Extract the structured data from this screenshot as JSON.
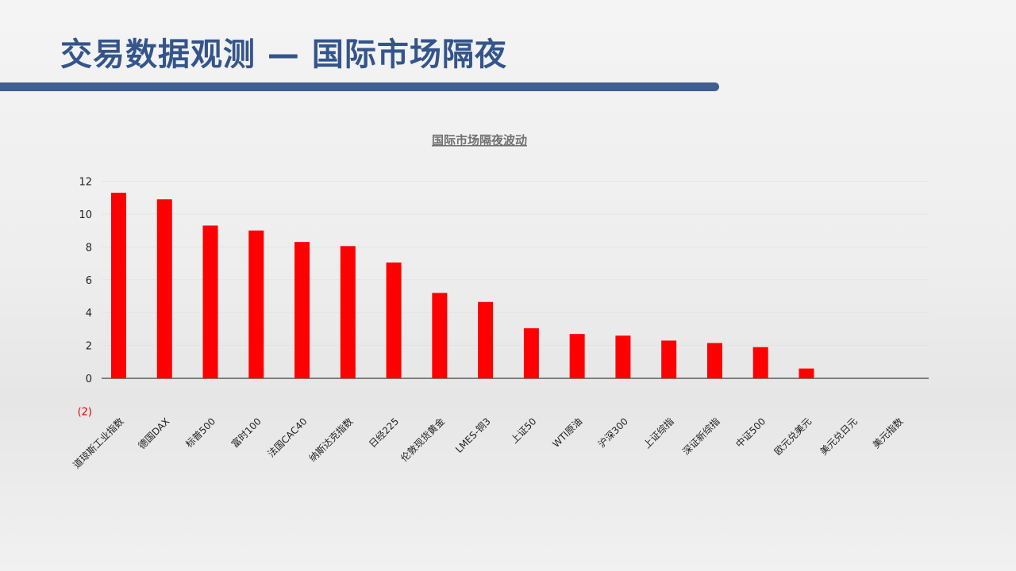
{
  "page": {
    "title": "交易数据观测 — 国际市场隔夜"
  },
  "colors": {
    "title_text": "#34558b",
    "title_bar": "#3f5e91",
    "bar": "#ff0000",
    "negative_tick": "#e00000"
  },
  "chart_data": {
    "type": "bar",
    "title": "国际市场隔夜波动",
    "xlabel": "",
    "ylabel": "",
    "ylim": [
      -2,
      12
    ],
    "yticks": [
      12,
      10,
      8,
      6,
      4,
      2,
      0,
      -2
    ],
    "ytick_labels": [
      "12",
      "10",
      "8",
      "6",
      "4",
      "2",
      "0",
      "(2)"
    ],
    "grid": true,
    "legend": "none",
    "categories": [
      "道琼斯工业指数",
      "德国DAX",
      "标普500",
      "富时100",
      "法国CAC40",
      "纳斯达克指数",
      "日经225",
      "伦敦现货黄金",
      "LMES-铜3",
      "上证50",
      "WTI原油",
      "沪深300",
      "上证综指",
      "深证新综指",
      "中证500",
      "欧元兑美元",
      "美元兑日元",
      "美元指数"
    ],
    "values": [
      11.3,
      10.9,
      9.3,
      9.0,
      8.3,
      8.05,
      7.05,
      5.2,
      4.65,
      3.05,
      2.7,
      2.6,
      2.3,
      2.15,
      1.9,
      0.6,
      0,
      0
    ]
  }
}
